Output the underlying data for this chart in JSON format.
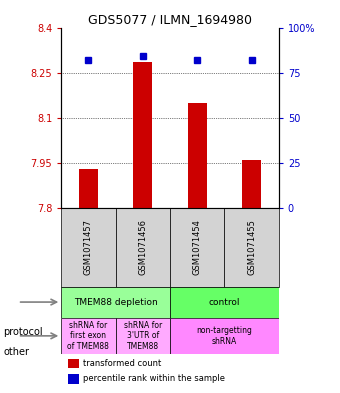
{
  "title": "GDS5077 / ILMN_1694980",
  "samples": [
    "GSM1071457",
    "GSM1071456",
    "GSM1071454",
    "GSM1071455"
  ],
  "transformed_counts": [
    7.93,
    8.285,
    8.15,
    7.96
  ],
  "percentile_ranks": [
    82,
    84,
    82,
    82
  ],
  "ylim_left": [
    7.8,
    8.4
  ],
  "ylim_right": [
    0,
    100
  ],
  "yticks_left": [
    7.8,
    7.95,
    8.1,
    8.25,
    8.4
  ],
  "ytick_labels_left": [
    "7.8",
    "7.95",
    "8.1",
    "8.25",
    "8.4"
  ],
  "yticks_right": [
    0,
    25,
    50,
    75,
    100
  ],
  "ytick_labels_right": [
    "0",
    "25",
    "50",
    "75",
    "100%"
  ],
  "bar_color": "#cc0000",
  "dot_color": "#0000cc",
  "grid_color": "#000000",
  "bg_color": "#ffffff",
  "bar_width": 0.35,
  "protocol_row": [
    {
      "label": "TMEM88 depletion",
      "span": [
        0,
        2
      ],
      "color": "#99ff99"
    },
    {
      "label": "control",
      "span": [
        2,
        4
      ],
      "color": "#66ff66"
    }
  ],
  "other_row": [
    {
      "label": "shRNA for\nfirst exon\nof TMEM88",
      "span": [
        0,
        1
      ],
      "color": "#ffaaff"
    },
    {
      "label": "shRNA for\n3'UTR of\nTMEM88",
      "span": [
        1,
        2
      ],
      "color": "#ffaaff"
    },
    {
      "label": "non-targetting\nshRNA",
      "span": [
        2,
        4
      ],
      "color": "#ff88ff"
    }
  ],
  "legend_items": [
    {
      "color": "#cc0000",
      "label": "transformed count"
    },
    {
      "color": "#0000cc",
      "label": "percentile rank within the sample"
    }
  ]
}
